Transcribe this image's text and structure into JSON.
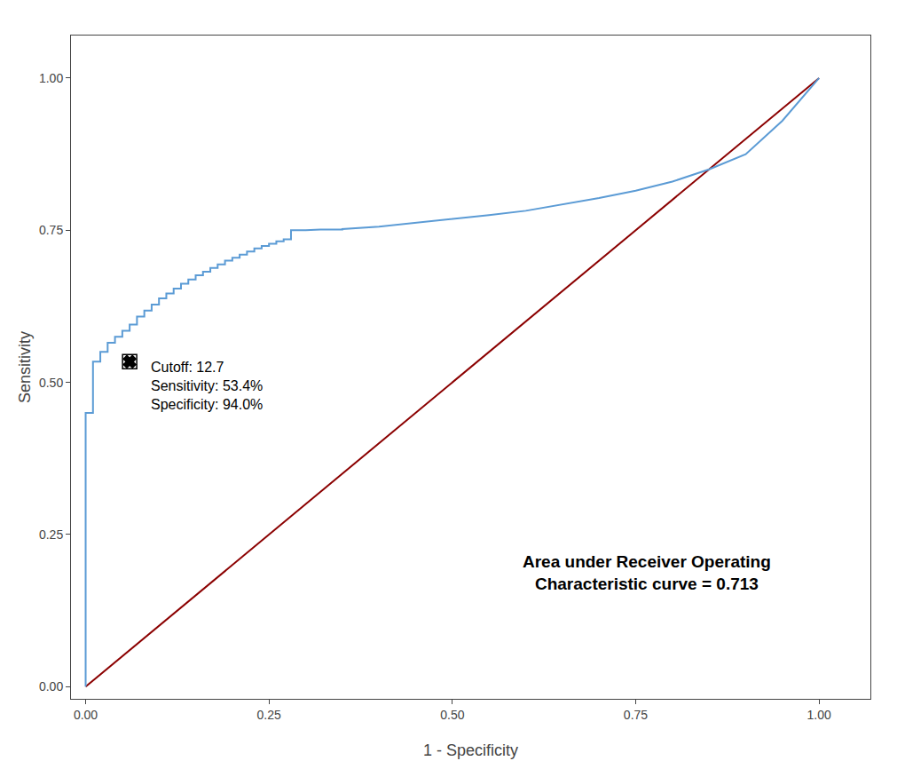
{
  "chart_data": {
    "type": "line",
    "xlabel": "1 - Specificity",
    "ylabel": "Sensitivity",
    "series": [
      {
        "type": "line",
        "color": "#8b0000",
        "x": [
          0,
          1
        ],
        "values": [
          0,
          1
        ]
      },
      {
        "type": "line",
        "color": "#5b9bd5",
        "x": [
          0.0,
          0.0,
          0.01,
          0.01,
          0.02,
          0.02,
          0.03,
          0.03,
          0.04,
          0.04,
          0.05,
          0.05,
          0.06,
          0.06,
          0.07,
          0.07,
          0.08,
          0.08,
          0.09,
          0.09,
          0.1,
          0.1,
          0.11,
          0.11,
          0.12,
          0.12,
          0.13,
          0.13,
          0.14,
          0.14,
          0.15,
          0.15,
          0.16,
          0.16,
          0.17,
          0.17,
          0.18,
          0.18,
          0.19,
          0.19,
          0.2,
          0.2,
          0.21,
          0.21,
          0.22,
          0.22,
          0.23,
          0.23,
          0.24,
          0.24,
          0.25,
          0.25,
          0.26,
          0.26,
          0.27,
          0.27,
          0.28,
          0.28,
          0.3,
          0.32,
          0.35,
          0.35,
          0.4,
          0.45,
          0.5,
          0.55,
          0.6,
          0.65,
          0.7,
          0.75,
          0.8,
          0.85,
          0.9,
          0.95,
          1.0
        ],
        "values": [
          0.0,
          0.45,
          0.45,
          0.534,
          0.534,
          0.55,
          0.55,
          0.565,
          0.565,
          0.575,
          0.575,
          0.585,
          0.585,
          0.595,
          0.595,
          0.608,
          0.608,
          0.618,
          0.618,
          0.628,
          0.628,
          0.638,
          0.638,
          0.646,
          0.646,
          0.654,
          0.654,
          0.662,
          0.662,
          0.669,
          0.669,
          0.676,
          0.676,
          0.682,
          0.682,
          0.688,
          0.688,
          0.694,
          0.694,
          0.7,
          0.7,
          0.705,
          0.705,
          0.71,
          0.71,
          0.715,
          0.715,
          0.72,
          0.72,
          0.724,
          0.724,
          0.728,
          0.728,
          0.732,
          0.732,
          0.735,
          0.735,
          0.75,
          0.75,
          0.751,
          0.751,
          0.752,
          0.756,
          0.762,
          0.768,
          0.775,
          0.782,
          0.792,
          0.803,
          0.815,
          0.83,
          0.85,
          0.875,
          0.93,
          1.0
        ]
      },
      {
        "type": "scatter",
        "marker": "x",
        "color": "#000000",
        "x": [
          0.06
        ],
        "values": [
          0.534
        ]
      }
    ],
    "annotations": [
      {
        "text": "Cutoff: 12.7\nSensitivity: 53.4%\nSpecificity: 94.0%",
        "x": 0.06,
        "y": 0.534
      },
      {
        "text": "Area under Receiver Operating\nCharacteristic curve = 0.713"
      }
    ],
    "xlim": [
      -0.02,
      1.07
    ],
    "ylim": [
      -0.02,
      1.07
    ],
    "xticks": [
      {
        "value": 0,
        "label": "0.00"
      },
      {
        "value": 0.25,
        "label": "0.25"
      },
      {
        "value": 0.5,
        "label": "0.50"
      },
      {
        "value": 0.75,
        "label": "0.75"
      },
      {
        "value": 1,
        "label": "1.00"
      }
    ],
    "yticks": [
      {
        "value": 0,
        "label": "0.00"
      },
      {
        "value": 0.25,
        "label": "0.25"
      },
      {
        "value": 0.5,
        "label": "0.50"
      },
      {
        "value": 0.75,
        "label": "0.75"
      },
      {
        "value": 1,
        "label": "1.00"
      }
    ],
    "grid": false
  }
}
